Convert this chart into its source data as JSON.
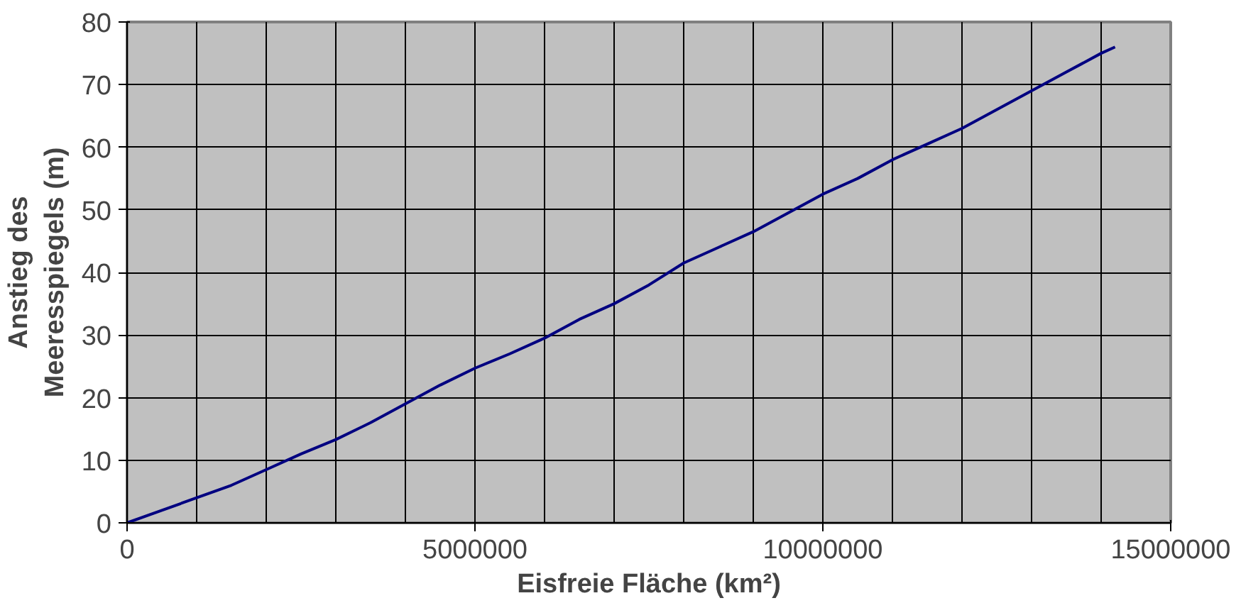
{
  "chart_data": {
    "type": "line",
    "xlabel": "Eisfreie Fläche (km²)",
    "ylabel": "Anstieg des\nMeeresspiegels (m)",
    "x": [
      0,
      500000,
      1000000,
      1500000,
      2000000,
      2500000,
      3000000,
      3500000,
      4000000,
      4500000,
      5000000,
      5500000,
      6000000,
      6500000,
      7000000,
      7500000,
      8000000,
      8500000,
      9000000,
      9500000,
      10000000,
      10500000,
      11000000,
      11500000,
      12000000,
      12500000,
      13000000,
      13500000,
      14000000,
      14200000
    ],
    "series": [
      {
        "color": "#000080",
        "values": [
          0,
          2,
          4,
          6,
          8.5,
          11,
          13.3,
          16,
          19,
          22,
          24.7,
          27,
          29.5,
          32.5,
          35,
          38,
          41.5,
          44,
          46.5,
          49.5,
          52.5,
          55,
          58,
          60.5,
          63,
          66,
          69,
          72,
          75,
          76
        ]
      }
    ],
    "xlim": [
      0,
      15000000
    ],
    "xticks": [
      0,
      5000000,
      10000000,
      15000000
    ],
    "ylim": [
      0,
      80
    ],
    "yticks": [
      0,
      10,
      20,
      30,
      40,
      50,
      60,
      70,
      80
    ],
    "grid": true
  }
}
